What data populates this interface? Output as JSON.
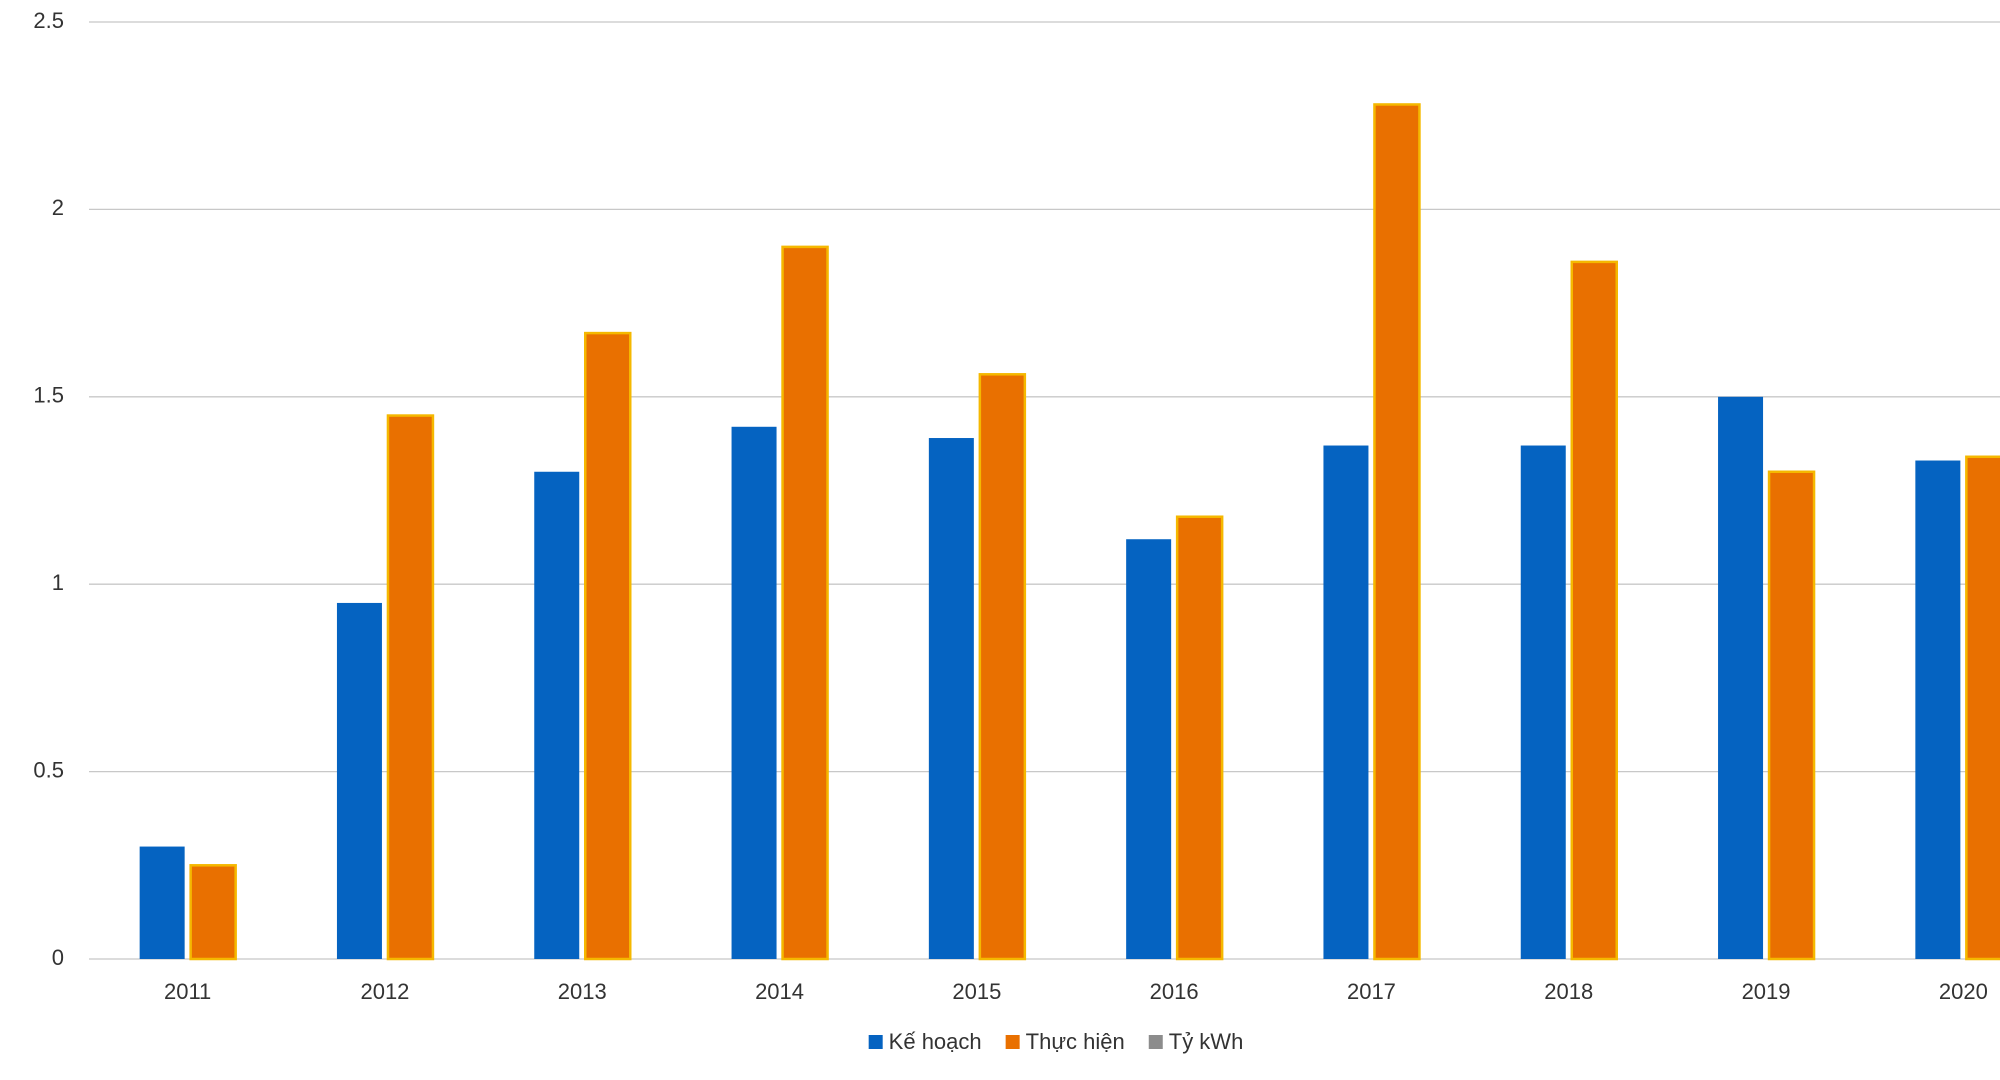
{
  "chart_data": {
    "type": "bar",
    "categories": [
      "2011",
      "2012",
      "2013",
      "2014",
      "2015",
      "2016",
      "2017",
      "2018",
      "2019",
      "2020"
    ],
    "series": [
      {
        "name": "Kế hoạch",
        "color": "#0563c1",
        "values": [
          0.3,
          0.95,
          1.3,
          1.42,
          1.39,
          1.12,
          1.37,
          1.37,
          1.5,
          1.33
        ]
      },
      {
        "name": "Thực hiện",
        "color": "#e97000",
        "values": [
          0.25,
          1.45,
          1.67,
          1.9,
          1.56,
          1.18,
          2.28,
          1.86,
          1.3,
          1.34
        ]
      },
      {
        "name": "Tỷ kWh",
        "color": "#8c8c8c",
        "values": [
          null,
          null,
          null,
          null,
          null,
          null,
          null,
          null,
          null,
          null
        ]
      }
    ],
    "ylim": [
      0,
      2.5
    ],
    "yticks": [
      0,
      0.5,
      1,
      1.5,
      2,
      2.5
    ],
    "grid": true,
    "legend": "bottom"
  }
}
